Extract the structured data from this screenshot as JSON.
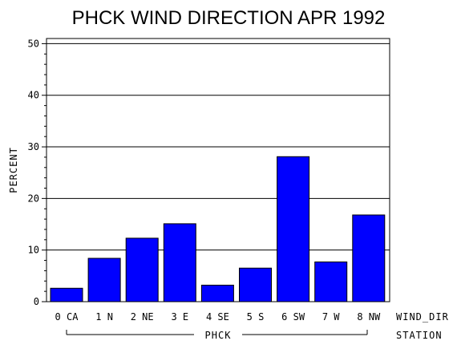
{
  "chart_data": {
    "type": "bar",
    "title": "PHCK WIND DIRECTION APR 1992",
    "ylabel": "PERCENT",
    "xlabel": "WIND_DIR",
    "group_label": "PHCK",
    "group_axis_label": "STATION",
    "categories": [
      "0 CA",
      "1 N",
      "2 NE",
      "3 E",
      "4 SE",
      "5 S",
      "6 SW",
      "7 W",
      "8 NW"
    ],
    "values": [
      2.6,
      8.4,
      12.3,
      15.1,
      3.2,
      6.5,
      28.1,
      7.7,
      16.8
    ],
    "ylim": [
      0,
      51
    ],
    "yticks": [
      0,
      10,
      20,
      30,
      40,
      50
    ],
    "grid": true,
    "bar_color": "#0000ff"
  }
}
